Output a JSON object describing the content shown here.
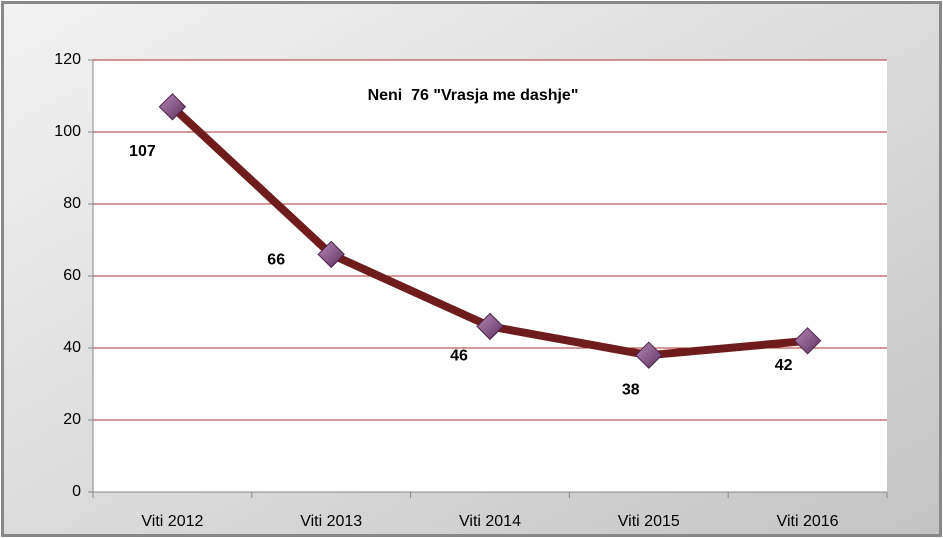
{
  "chart_data": {
    "type": "line",
    "title": "Neni  76 \"Vrasja me dashje\"",
    "categories": [
      "Viti 2012",
      "Viti 2013",
      "Viti 2014",
      "Viti 2015",
      "Viti 2016"
    ],
    "series": [
      {
        "color": "#6e1c1c",
        "marker_color": "#7a4a78",
        "values": [
          107,
          66,
          46,
          38,
          42
        ]
      }
    ],
    "ylim": [
      0,
      120
    ],
    "yticks": [
      0,
      20,
      40,
      60,
      80,
      100,
      120
    ],
    "grid": true,
    "grid_color": "#a83232"
  }
}
